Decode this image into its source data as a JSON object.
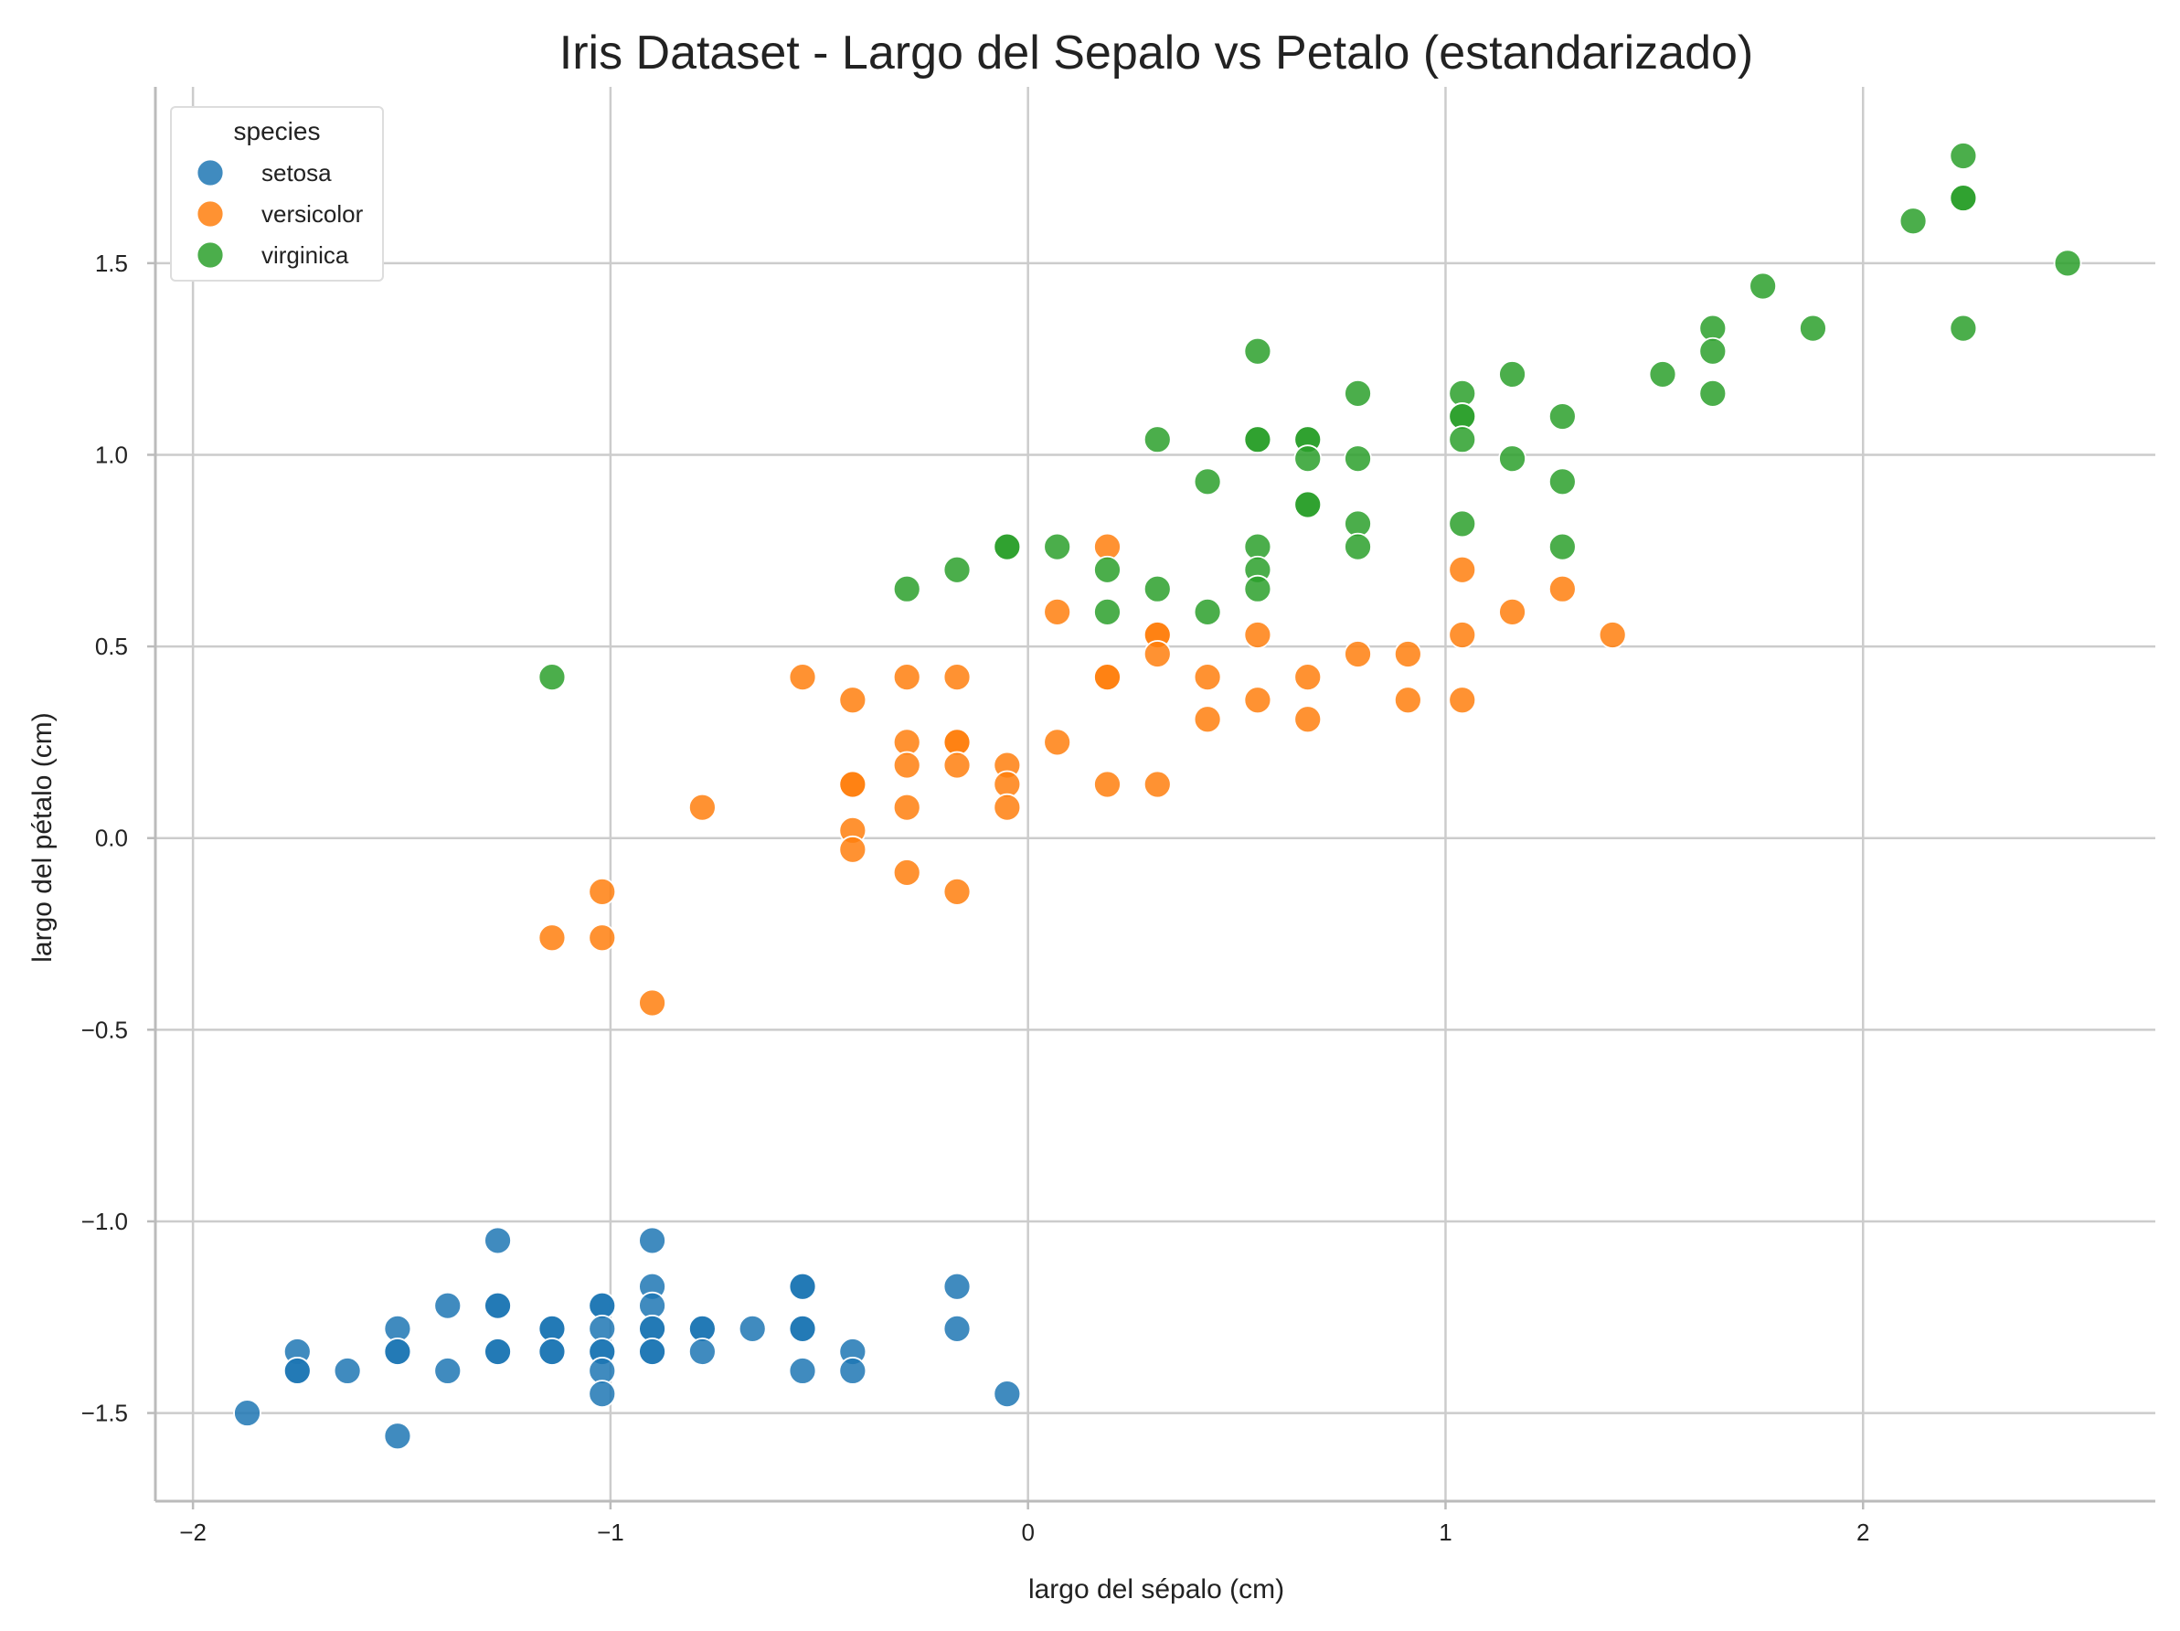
{
  "chart_data": {
    "type": "scatter",
    "title": "Iris Dataset - Largo del Sepalo vs Petalo (estandarizado)",
    "xlabel": "largo del sépalo (cm)",
    "ylabel": "largo del pétalo (cm)",
    "xlim": [
      -2.09,
      2.7
    ],
    "ylim": [
      -1.73,
      1.96
    ],
    "xticks": [
      -2,
      -1,
      0,
      1,
      2
    ],
    "xtick_labels": [
      "−2",
      "−1",
      "0",
      "1",
      "2"
    ],
    "yticks": [
      -1.5,
      -1.0,
      -0.5,
      0.0,
      0.5,
      1.0,
      1.5
    ],
    "ytick_labels": [
      "−1.5",
      "−1.0",
      "−0.5",
      "0.0",
      "0.5",
      "1.0",
      "1.5"
    ],
    "grid": true,
    "legend": {
      "title": "species",
      "placement": "upper-left"
    },
    "series": [
      {
        "name": "setosa",
        "color": "#1f77b4",
        "points": [
          [
            -1.87,
            -1.5
          ],
          [
            -1.75,
            -1.34
          ],
          [
            -1.75,
            -1.39
          ],
          [
            -1.75,
            -1.39
          ],
          [
            -1.63,
            -1.39
          ],
          [
            -1.51,
            -1.28
          ],
          [
            -1.51,
            -1.34
          ],
          [
            -1.51,
            -1.34
          ],
          [
            -1.51,
            -1.56
          ],
          [
            -1.39,
            -1.22
          ],
          [
            -1.39,
            -1.39
          ],
          [
            -1.27,
            -1.05
          ],
          [
            -1.27,
            -1.22
          ],
          [
            -1.27,
            -1.22
          ],
          [
            -1.27,
            -1.34
          ],
          [
            -1.27,
            -1.34
          ],
          [
            -1.14,
            -1.28
          ],
          [
            -1.14,
            -1.28
          ],
          [
            -1.14,
            -1.34
          ],
          [
            -1.14,
            -1.34
          ],
          [
            -1.02,
            -1.22
          ],
          [
            -1.02,
            -1.22
          ],
          [
            -1.02,
            -1.28
          ],
          [
            -1.02,
            -1.34
          ],
          [
            -1.02,
            -1.34
          ],
          [
            -1.02,
            -1.39
          ],
          [
            -1.02,
            -1.45
          ],
          [
            -0.9,
            -1.05
          ],
          [
            -0.9,
            -1.17
          ],
          [
            -0.9,
            -1.22
          ],
          [
            -0.9,
            -1.28
          ],
          [
            -0.9,
            -1.28
          ],
          [
            -0.9,
            -1.34
          ],
          [
            -0.9,
            -1.34
          ],
          [
            -0.78,
            -1.28
          ],
          [
            -0.78,
            -1.28
          ],
          [
            -0.78,
            -1.34
          ],
          [
            -0.66,
            -1.28
          ],
          [
            -0.54,
            -1.17
          ],
          [
            -0.54,
            -1.17
          ],
          [
            -0.54,
            -1.28
          ],
          [
            -0.54,
            -1.28
          ],
          [
            -0.54,
            -1.39
          ],
          [
            -0.42,
            -1.34
          ],
          [
            -0.42,
            -1.39
          ],
          [
            -0.17,
            -1.17
          ],
          [
            -0.17,
            -1.28
          ],
          [
            -0.05,
            -1.45
          ]
        ]
      },
      {
        "name": "versicolor",
        "color": "#ff7f0e",
        "points": [
          [
            -1.14,
            -0.26
          ],
          [
            -1.02,
            -0.14
          ],
          [
            -1.02,
            -0.26
          ],
          [
            -0.9,
            -0.43
          ],
          [
            -0.78,
            0.08
          ],
          [
            -0.54,
            0.42
          ],
          [
            -0.42,
            0.36
          ],
          [
            -0.42,
            0.14
          ],
          [
            -0.42,
            0.14
          ],
          [
            -0.42,
            0.02
          ],
          [
            -0.42,
            -0.03
          ],
          [
            -0.29,
            0.42
          ],
          [
            -0.29,
            0.25
          ],
          [
            -0.29,
            0.19
          ],
          [
            -0.29,
            0.08
          ],
          [
            -0.29,
            -0.09
          ],
          [
            -0.17,
            0.42
          ],
          [
            -0.17,
            0.25
          ],
          [
            -0.17,
            0.25
          ],
          [
            -0.17,
            0.19
          ],
          [
            -0.17,
            -0.14
          ],
          [
            -0.05,
            0.19
          ],
          [
            -0.05,
            0.14
          ],
          [
            -0.05,
            0.08
          ],
          [
            0.07,
            0.59
          ],
          [
            0.07,
            0.25
          ],
          [
            0.19,
            0.76
          ],
          [
            0.19,
            0.42
          ],
          [
            0.19,
            0.42
          ],
          [
            0.19,
            0.14
          ],
          [
            0.31,
            0.53
          ],
          [
            0.31,
            0.53
          ],
          [
            0.31,
            0.48
          ],
          [
            0.31,
            0.14
          ],
          [
            0.43,
            0.42
          ],
          [
            0.43,
            0.31
          ],
          [
            0.55,
            0.53
          ],
          [
            0.55,
            0.36
          ],
          [
            0.67,
            0.42
          ],
          [
            0.67,
            0.31
          ],
          [
            0.79,
            0.48
          ],
          [
            0.91,
            0.48
          ],
          [
            0.91,
            0.36
          ],
          [
            1.04,
            0.7
          ],
          [
            1.04,
            0.53
          ],
          [
            1.04,
            0.36
          ],
          [
            1.16,
            0.59
          ],
          [
            1.28,
            0.65
          ],
          [
            1.4,
            0.53
          ]
        ]
      },
      {
        "name": "virginica",
        "color": "#2ca02c",
        "points": [
          [
            -1.14,
            0.42
          ],
          [
            -0.29,
            0.65
          ],
          [
            -0.17,
            0.7
          ],
          [
            -0.05,
            0.76
          ],
          [
            -0.05,
            0.76
          ],
          [
            0.07,
            0.76
          ],
          [
            0.19,
            0.7
          ],
          [
            0.19,
            0.59
          ],
          [
            0.31,
            1.04
          ],
          [
            0.31,
            0.65
          ],
          [
            0.43,
            0.93
          ],
          [
            0.43,
            0.59
          ],
          [
            0.55,
            1.27
          ],
          [
            0.55,
            1.04
          ],
          [
            0.55,
            1.04
          ],
          [
            0.55,
            0.76
          ],
          [
            0.55,
            0.7
          ],
          [
            0.55,
            0.65
          ],
          [
            0.67,
            1.04
          ],
          [
            0.67,
            1.04
          ],
          [
            0.67,
            0.99
          ],
          [
            0.67,
            0.87
          ],
          [
            0.67,
            0.87
          ],
          [
            0.79,
            1.16
          ],
          [
            0.79,
            0.99
          ],
          [
            0.79,
            0.82
          ],
          [
            0.79,
            0.76
          ],
          [
            1.04,
            1.16
          ],
          [
            1.04,
            1.1
          ],
          [
            1.04,
            1.1
          ],
          [
            1.04,
            1.04
          ],
          [
            1.04,
            0.82
          ],
          [
            1.16,
            1.21
          ],
          [
            1.16,
            0.99
          ],
          [
            1.28,
            1.1
          ],
          [
            1.28,
            0.93
          ],
          [
            1.28,
            0.76
          ],
          [
            1.52,
            1.21
          ],
          [
            1.64,
            1.33
          ],
          [
            1.64,
            1.27
          ],
          [
            1.64,
            1.16
          ],
          [
            1.76,
            1.44
          ],
          [
            1.88,
            1.33
          ],
          [
            2.12,
            1.61
          ],
          [
            2.24,
            1.78
          ],
          [
            2.24,
            1.67
          ],
          [
            2.24,
            1.67
          ],
          [
            2.24,
            1.33
          ],
          [
            2.49,
            1.5
          ]
        ]
      }
    ]
  }
}
